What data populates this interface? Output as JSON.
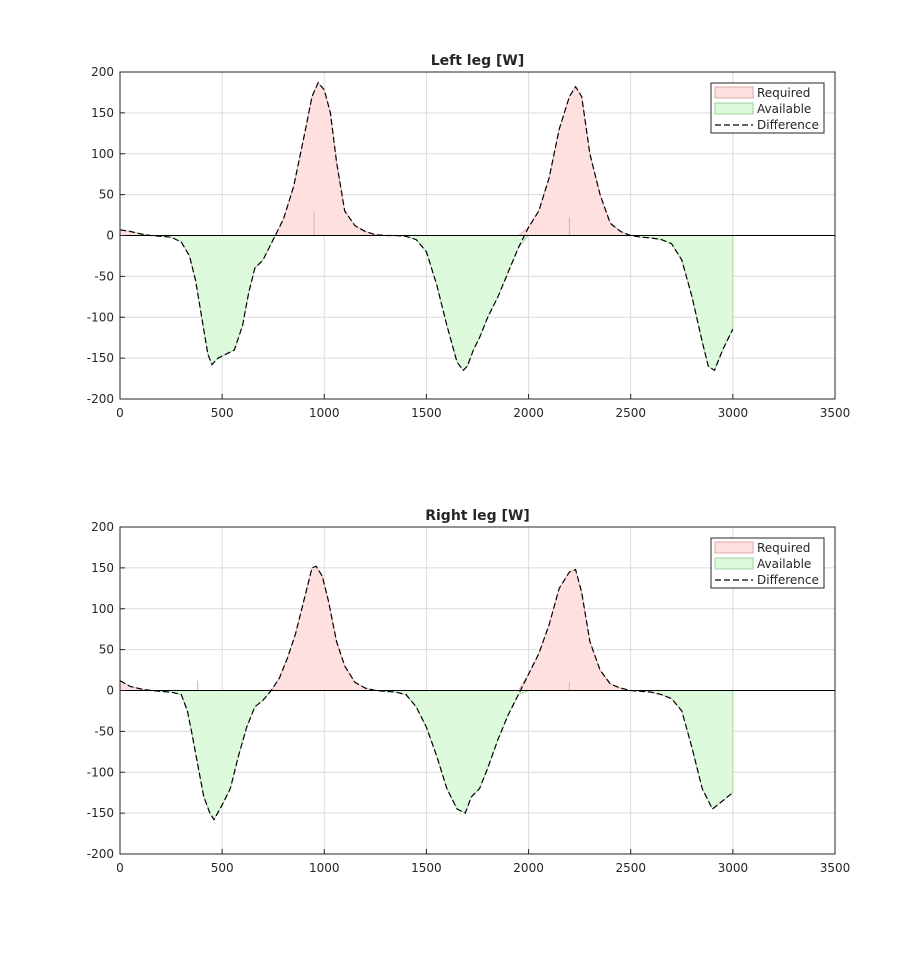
{
  "chart_data": [
    {
      "type": "area",
      "title": "Left leg [W]",
      "xlabel": "",
      "ylabel": "",
      "xlim": [
        0,
        3500
      ],
      "ylim": [
        -200,
        200
      ],
      "xticks": [
        0,
        500,
        1000,
        1500,
        2000,
        2500,
        3000,
        3500
      ],
      "yticks": [
        200,
        150,
        100,
        50,
        0,
        -50,
        -100,
        -150,
        -200
      ],
      "grid": true,
      "legend_position": "top-right",
      "legend": [
        "Required",
        "Available",
        "Difference"
      ],
      "colors": {
        "required_fill": "#ffe0e0",
        "required_edge": "#e0a8a8",
        "available_fill": "#ddfadd",
        "available_edge": "#9fcf9f",
        "difference": "#000000",
        "zero_line": "#000000"
      },
      "x": [
        0,
        50,
        100,
        150,
        200,
        250,
        300,
        340,
        370,
        400,
        430,
        450,
        480,
        520,
        560,
        600,
        630,
        660,
        700,
        730,
        760,
        800,
        850,
        900,
        940,
        970,
        1000,
        1030,
        1060,
        1100,
        1150,
        1200,
        1250,
        1300,
        1350,
        1400,
        1450,
        1500,
        1550,
        1600,
        1650,
        1680,
        1700,
        1730,
        1760,
        1800,
        1850,
        1900,
        1950,
        2000,
        2050,
        2100,
        2150,
        2200,
        2230,
        2260,
        2300,
        2350,
        2400,
        2450,
        2500,
        2550,
        2600,
        2650,
        2700,
        2750,
        2800,
        2850,
        2880,
        2910,
        2950,
        2999,
        3000
      ],
      "difference": [
        7,
        5,
        2,
        0,
        -1,
        -2,
        -8,
        -25,
        -55,
        -100,
        -145,
        -158,
        -150,
        -145,
        -140,
        -110,
        -70,
        -40,
        -30,
        -15,
        0,
        20,
        60,
        120,
        170,
        187,
        178,
        150,
        90,
        30,
        12,
        5,
        1,
        0,
        0,
        -1,
        -5,
        -20,
        -60,
        -110,
        -155,
        -165,
        -160,
        -140,
        -125,
        -100,
        -75,
        -45,
        -15,
        10,
        30,
        70,
        130,
        170,
        182,
        170,
        100,
        50,
        15,
        5,
        0,
        -2,
        -3,
        -5,
        -10,
        -30,
        -75,
        -130,
        -160,
        -165,
        -140,
        -115,
        -115
      ],
      "required_spikes": [
        {
          "x": 950,
          "y": 30
        },
        {
          "x": 2200,
          "y": 22
        }
      ]
    },
    {
      "type": "area",
      "title": "Right leg [W]",
      "xlabel": "",
      "ylabel": "",
      "xlim": [
        0,
        3500
      ],
      "ylim": [
        -200,
        200
      ],
      "xticks": [
        0,
        500,
        1000,
        1500,
        2000,
        2500,
        3000,
        3500
      ],
      "yticks": [
        200,
        150,
        100,
        50,
        0,
        -50,
        -100,
        -150,
        -200
      ],
      "grid": true,
      "legend_position": "top-right",
      "legend": [
        "Required",
        "Available",
        "Difference"
      ],
      "colors": {
        "required_fill": "#ffe0e0",
        "required_edge": "#e0a8a8",
        "available_fill": "#ddfadd",
        "available_edge": "#9fcf9f",
        "difference": "#000000",
        "zero_line": "#000000"
      },
      "x": [
        0,
        50,
        100,
        150,
        200,
        250,
        300,
        330,
        350,
        380,
        410,
        440,
        460,
        500,
        540,
        580,
        620,
        660,
        700,
        740,
        780,
        820,
        860,
        900,
        940,
        960,
        990,
        1020,
        1060,
        1100,
        1150,
        1200,
        1250,
        1300,
        1350,
        1400,
        1450,
        1500,
        1550,
        1600,
        1650,
        1690,
        1720,
        1760,
        1800,
        1850,
        1900,
        1950,
        2000,
        2050,
        2100,
        2150,
        2200,
        2230,
        2260,
        2300,
        2350,
        2400,
        2450,
        2500,
        2550,
        2600,
        2650,
        2700,
        2750,
        2800,
        2850,
        2900,
        2950,
        2999,
        3000
      ],
      "difference": [
        12,
        5,
        2,
        0,
        -1,
        -2,
        -5,
        -25,
        -50,
        -90,
        -130,
        -150,
        -158,
        -140,
        -120,
        -80,
        -45,
        -20,
        -12,
        0,
        15,
        40,
        70,
        110,
        150,
        152,
        140,
        110,
        60,
        30,
        10,
        3,
        0,
        -1,
        -2,
        -5,
        -20,
        -45,
        -80,
        -120,
        -145,
        -150,
        -130,
        -120,
        -95,
        -60,
        -30,
        -5,
        20,
        45,
        80,
        125,
        145,
        148,
        120,
        60,
        25,
        8,
        3,
        0,
        -1,
        -2,
        -5,
        -10,
        -25,
        -70,
        -120,
        -145,
        -135,
        -125,
        -125
      ],
      "required_spikes": [
        {
          "x": 380,
          "y": 12
        },
        {
          "x": 2200,
          "y": 10
        }
      ]
    }
  ]
}
